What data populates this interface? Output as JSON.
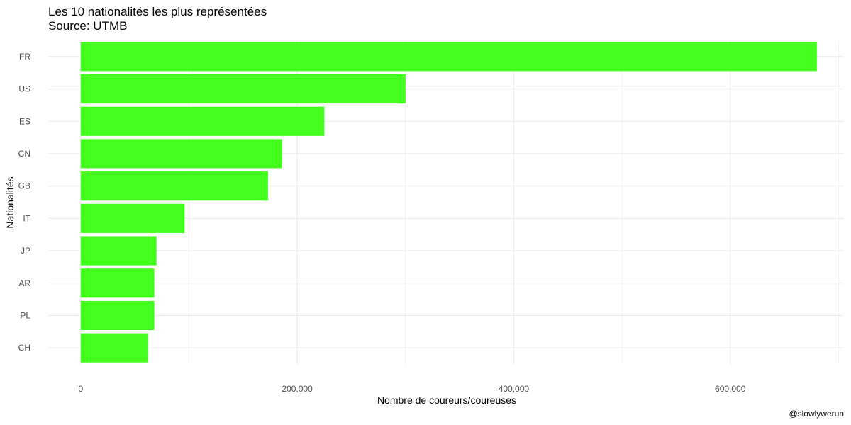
{
  "chart_data": {
    "type": "bar",
    "orientation": "horizontal",
    "title": "Les 10 nationalités les plus représentées",
    "subtitle": "Source: UTMB",
    "xlabel": "Nombre de coureurs/coureuses",
    "ylabel": "Nationalités",
    "caption": "@slowlywerun",
    "categories": [
      "FR",
      "US",
      "ES",
      "CN",
      "GB",
      "IT",
      "JP",
      "AR",
      "PL",
      "CH"
    ],
    "values": [
      680000,
      300000,
      225000,
      186000,
      173000,
      96000,
      70000,
      68000,
      68000,
      62000
    ],
    "xlim": [
      -30000,
      705000
    ],
    "xticks": [
      0,
      200000,
      400000,
      600000
    ],
    "xtick_labels": [
      "0",
      "200,000",
      "400,000",
      "600,000"
    ],
    "grid": true,
    "bar_color": "#44ff1d",
    "grid_color": "#ebebeb"
  }
}
